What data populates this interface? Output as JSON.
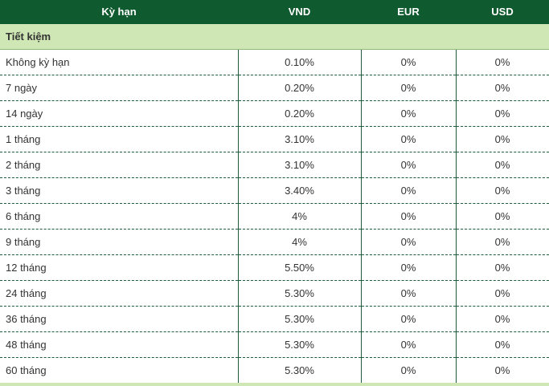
{
  "table": {
    "headers": [
      "Kỳ hạn",
      "VND",
      "EUR",
      "USD"
    ],
    "group_label": "Tiết kiệm",
    "rows": [
      {
        "term": "Không kỳ hạn",
        "vnd": "0.10%",
        "eur": "0%",
        "usd": "0%"
      },
      {
        "term": "7 ngày",
        "vnd": "0.20%",
        "eur": "0%",
        "usd": "0%"
      },
      {
        "term": "14 ngày",
        "vnd": "0.20%",
        "eur": "0%",
        "usd": "0%"
      },
      {
        "term": "1 tháng",
        "vnd": "3.10%",
        "eur": "0%",
        "usd": "0%"
      },
      {
        "term": "2 tháng",
        "vnd": "3.10%",
        "eur": "0%",
        "usd": "0%"
      },
      {
        "term": "3 tháng",
        "vnd": "3.40%",
        "eur": "0%",
        "usd": "0%"
      },
      {
        "term": "6 tháng",
        "vnd": "4%",
        "eur": "0%",
        "usd": "0%"
      },
      {
        "term": "9 tháng",
        "vnd": "4%",
        "eur": "0%",
        "usd": "0%"
      },
      {
        "term": "12 tháng",
        "vnd": "5.50%",
        "eur": "0%",
        "usd": "0%"
      },
      {
        "term": "24 tháng",
        "vnd": "5.30%",
        "eur": "0%",
        "usd": "0%"
      },
      {
        "term": "36 tháng",
        "vnd": "5.30%",
        "eur": "0%",
        "usd": "0%"
      },
      {
        "term": "48 tháng",
        "vnd": "5.30%",
        "eur": "0%",
        "usd": "0%"
      },
      {
        "term": "60 tháng",
        "vnd": "5.30%",
        "eur": "0%",
        "usd": "0%"
      }
    ]
  },
  "colors": {
    "header_bg": "#0f5a2e",
    "header_text": "#ffffff",
    "group_bg": "#cfe7b4",
    "border": "#1f5b3a"
  }
}
